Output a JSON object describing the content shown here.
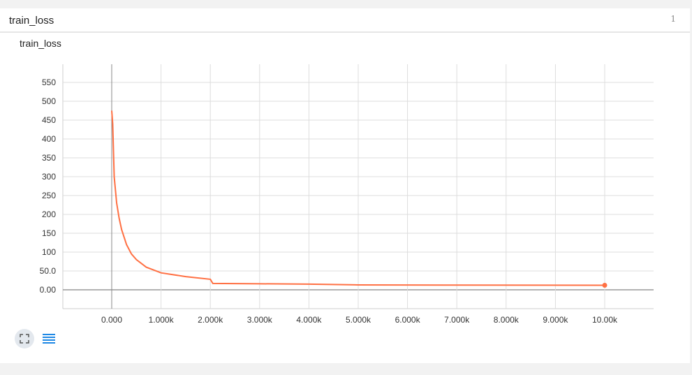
{
  "header": {
    "title": "train_loss",
    "count": "1"
  },
  "chart_data": {
    "type": "line",
    "title": "train_loss",
    "xlim": [
      -1000,
      11000
    ],
    "ylim": [
      -50,
      600
    ],
    "xticks": [
      0,
      1000,
      2000,
      3000,
      4000,
      5000,
      6000,
      7000,
      8000,
      9000,
      10000
    ],
    "xtick_labels": [
      "0.000",
      "1.000k",
      "2.000k",
      "3.000k",
      "4.000k",
      "5.000k",
      "6.000k",
      "7.000k",
      "8.000k",
      "9.000k",
      "10.00k"
    ],
    "yticks": [
      0,
      50,
      100,
      150,
      200,
      250,
      300,
      350,
      400,
      450,
      500,
      550
    ],
    "ytick_labels": [
      "0.00",
      "50.0",
      "100",
      "150",
      "200",
      "250",
      "300",
      "350",
      "400",
      "450",
      "500",
      "550"
    ],
    "grid": true,
    "series_color": "#ff7043",
    "series": [
      {
        "x": [
          0,
          20,
          50,
          100,
          150,
          200,
          300,
          400,
          500,
          700,
          1000,
          1500,
          2000,
          2050,
          3000,
          4000,
          5000,
          7000,
          10000
        ],
        "y": [
          475,
          440,
          300,
          230,
          190,
          160,
          120,
          95,
          80,
          60,
          45,
          35,
          28,
          17,
          16,
          15,
          13,
          12.5,
          12
        ]
      }
    ]
  },
  "toolbar": {
    "fit_icon": "fit-domain-icon",
    "list_icon": "list-icon",
    "accent": "#1e88e5"
  }
}
